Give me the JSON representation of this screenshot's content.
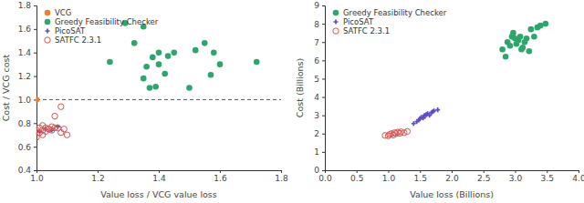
{
  "chart_data": [
    {
      "type": "scatter",
      "x_label": "Value loss / VCG value loss",
      "y_label": "Cost / VCG cost",
      "xlim": [
        1.0,
        1.8
      ],
      "ylim": [
        0.4,
        1.8
      ],
      "xticks": [
        {
          "value": 1,
          "label": "1.0"
        },
        1.2,
        1.4,
        1.6,
        1.8
      ],
      "yticks": [
        0.4,
        0.6,
        0.8,
        {
          "value": 1,
          "label": "1.0"
        },
        1.2,
        1.4,
        1.6,
        1.8
      ],
      "grid": false,
      "legend": "upper left",
      "series": [
        {
          "name": "VCG",
          "color": "#f07d32",
          "marker": "circle",
          "line_style": "dashed",
          "x": [
            1.0
          ],
          "values": [
            1.0
          ]
        },
        {
          "name": "Greedy Feasibility Checker",
          "color": "#2ea56a",
          "marker": "circle",
          "x": [
            1.24,
            1.29,
            1.32,
            1.35,
            1.35,
            1.36,
            1.37,
            1.38,
            1.39,
            1.4,
            1.4,
            1.42,
            1.43,
            1.45,
            1.5,
            1.52,
            1.55,
            1.57,
            1.58,
            1.6,
            1.72
          ],
          "values": [
            1.32,
            1.65,
            1.48,
            1.18,
            1.62,
            1.28,
            1.1,
            1.36,
            1.11,
            1.3,
            1.4,
            1.22,
            1.37,
            1.4,
            1.1,
            1.42,
            1.48,
            1.21,
            1.4,
            1.3,
            1.32
          ]
        },
        {
          "name": "PicoSAT",
          "color": "#5b4fc4",
          "marker": "plus",
          "x": [
            1.01,
            1.03,
            1.05,
            1.07
          ],
          "values": [
            0.73,
            0.75,
            0.74,
            0.77
          ]
        },
        {
          "name": "SATFC 2.3.1",
          "color": "#d9534f",
          "marker": "circle-open",
          "x": [
            1.0,
            1.01,
            1.01,
            1.02,
            1.02,
            1.03,
            1.03,
            1.04,
            1.05,
            1.05,
            1.06,
            1.07,
            1.08,
            1.08,
            1.09,
            1.1,
            1.0,
            1.02,
            1.04,
            1.06
          ],
          "values": [
            0.68,
            0.72,
            0.76,
            0.74,
            0.7,
            0.76,
            0.73,
            0.75,
            0.77,
            0.74,
            0.76,
            0.76,
            0.72,
            0.94,
            0.75,
            0.7,
            0.74,
            0.78,
            0.75,
            0.86
          ]
        }
      ]
    },
    {
      "type": "scatter",
      "x_label": "Value loss (Billions)",
      "y_label": "Cost (Billions)",
      "xlim": [
        0,
        4.0
      ],
      "ylim": [
        0,
        9
      ],
      "xticks": [
        {
          "value": 0,
          "label": "0.0"
        },
        0.5,
        {
          "value": 1,
          "label": "1.0"
        },
        1.5,
        {
          "value": 2,
          "label": "2.0"
        },
        2.5,
        {
          "value": 3,
          "label": "3.0"
        },
        3.5,
        {
          "value": 4,
          "label": "4.0"
        }
      ],
      "yticks": [
        0,
        1,
        2,
        3,
        4,
        5,
        6,
        7,
        8,
        9
      ],
      "grid": false,
      "legend": "upper left",
      "series": [
        {
          "name": "Greedy Feasibility Checker",
          "color": "#2ea56a",
          "marker": "circle",
          "x": [
            2.8,
            2.85,
            2.88,
            2.92,
            2.95,
            2.97,
            3.0,
            3.02,
            3.05,
            3.08,
            3.1,
            3.12,
            3.15,
            3.18,
            3.22,
            3.25,
            3.3,
            3.35,
            3.4,
            3.48
          ],
          "values": [
            6.6,
            6.2,
            7.0,
            6.8,
            7.3,
            7.5,
            7.2,
            6.9,
            7.1,
            7.3,
            6.6,
            6.7,
            7.0,
            7.2,
            6.5,
            7.7,
            7.3,
            7.8,
            7.9,
            8.0
          ]
        },
        {
          "name": "PicoSAT",
          "color": "#5b4fc4",
          "marker": "plus",
          "x": [
            1.4,
            1.45,
            1.48,
            1.5,
            1.52,
            1.55,
            1.57,
            1.58,
            1.6,
            1.62,
            1.65,
            1.68,
            1.7,
            1.72,
            1.78
          ],
          "values": [
            2.55,
            2.65,
            2.75,
            2.8,
            2.9,
            2.85,
            3.0,
            2.95,
            3.05,
            3.1,
            3.0,
            3.15,
            3.2,
            3.25,
            3.3
          ]
        },
        {
          "name": "SATFC 2.3.1",
          "color": "#d9534f",
          "marker": "circle-open",
          "x": [
            0.95,
            1.0,
            1.02,
            1.05,
            1.08,
            1.1,
            1.12,
            1.15,
            1.18,
            1.2,
            1.25,
            1.3
          ],
          "values": [
            1.9,
            1.88,
            1.95,
            2.0,
            1.92,
            2.05,
            2.0,
            2.08,
            2.02,
            2.1,
            2.05,
            2.12
          ]
        }
      ]
    }
  ]
}
